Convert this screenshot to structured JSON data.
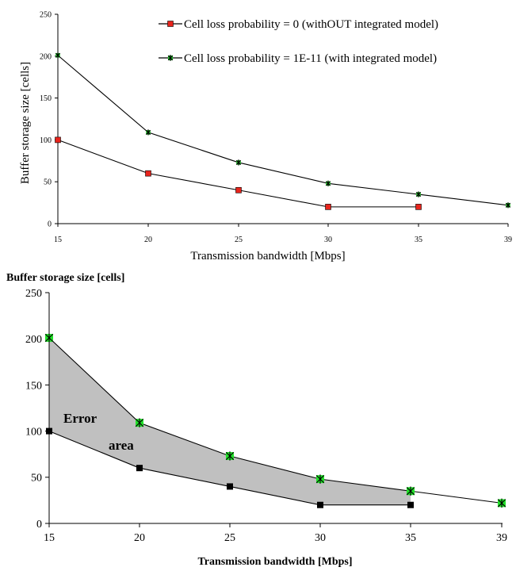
{
  "chart_data": [
    {
      "type": "line",
      "title": "",
      "xlabel": "Transmission bandwidth [Mbps]",
      "ylabel": "Buffer storage size [cells]",
      "x": [
        15,
        20,
        25,
        30,
        35,
        39
      ],
      "x_tick_labels": [
        "15",
        "20",
        "25",
        "30",
        "35",
        "39"
      ],
      "ylim": [
        0,
        250
      ],
      "y_tick_labels": [
        "0",
        "50",
        "100",
        "150",
        "200",
        "250"
      ],
      "grid": false,
      "legend_position": "top-right",
      "series": [
        {
          "name": "Cell loss probability = 0 (withOUT integrated model)",
          "x": [
            15,
            20,
            25,
            30,
            35
          ],
          "values": [
            100,
            60,
            40,
            20,
            20
          ],
          "marker": "square",
          "marker_color": "#e8241c"
        },
        {
          "name": "Cell loss probability = 1E-11 (with integrated model)",
          "x": [
            15,
            20,
            25,
            30,
            35,
            39
          ],
          "values": [
            201,
            109,
            73,
            48,
            35,
            22
          ],
          "marker": "star",
          "marker_color": "#22c02a"
        }
      ]
    },
    {
      "type": "area",
      "title": "",
      "xlabel": "Transmission bandwidth [Mbps]",
      "ylabel": "Buffer storage size [cells]",
      "x": [
        15,
        20,
        25,
        30,
        35,
        39
      ],
      "x_tick_labels": [
        "15",
        "20",
        "25",
        "30",
        "35",
        "39"
      ],
      "ylim": [
        0,
        250
      ],
      "y_tick_labels": [
        "0",
        "50",
        "100",
        "150",
        "200",
        "250"
      ],
      "grid": false,
      "fill_color": "#c0c0c0",
      "annotations": [
        "Error",
        "area"
      ],
      "series": [
        {
          "x": [
            15,
            20,
            25,
            30,
            35
          ],
          "values": [
            100,
            60,
            40,
            20,
            20
          ],
          "marker": "square",
          "marker_color": "#000000"
        },
        {
          "x": [
            15,
            20,
            25,
            30,
            35,
            39
          ],
          "values": [
            201,
            109,
            73,
            48,
            35,
            22
          ],
          "marker": "star",
          "marker_color": "#22e02a"
        }
      ]
    }
  ]
}
